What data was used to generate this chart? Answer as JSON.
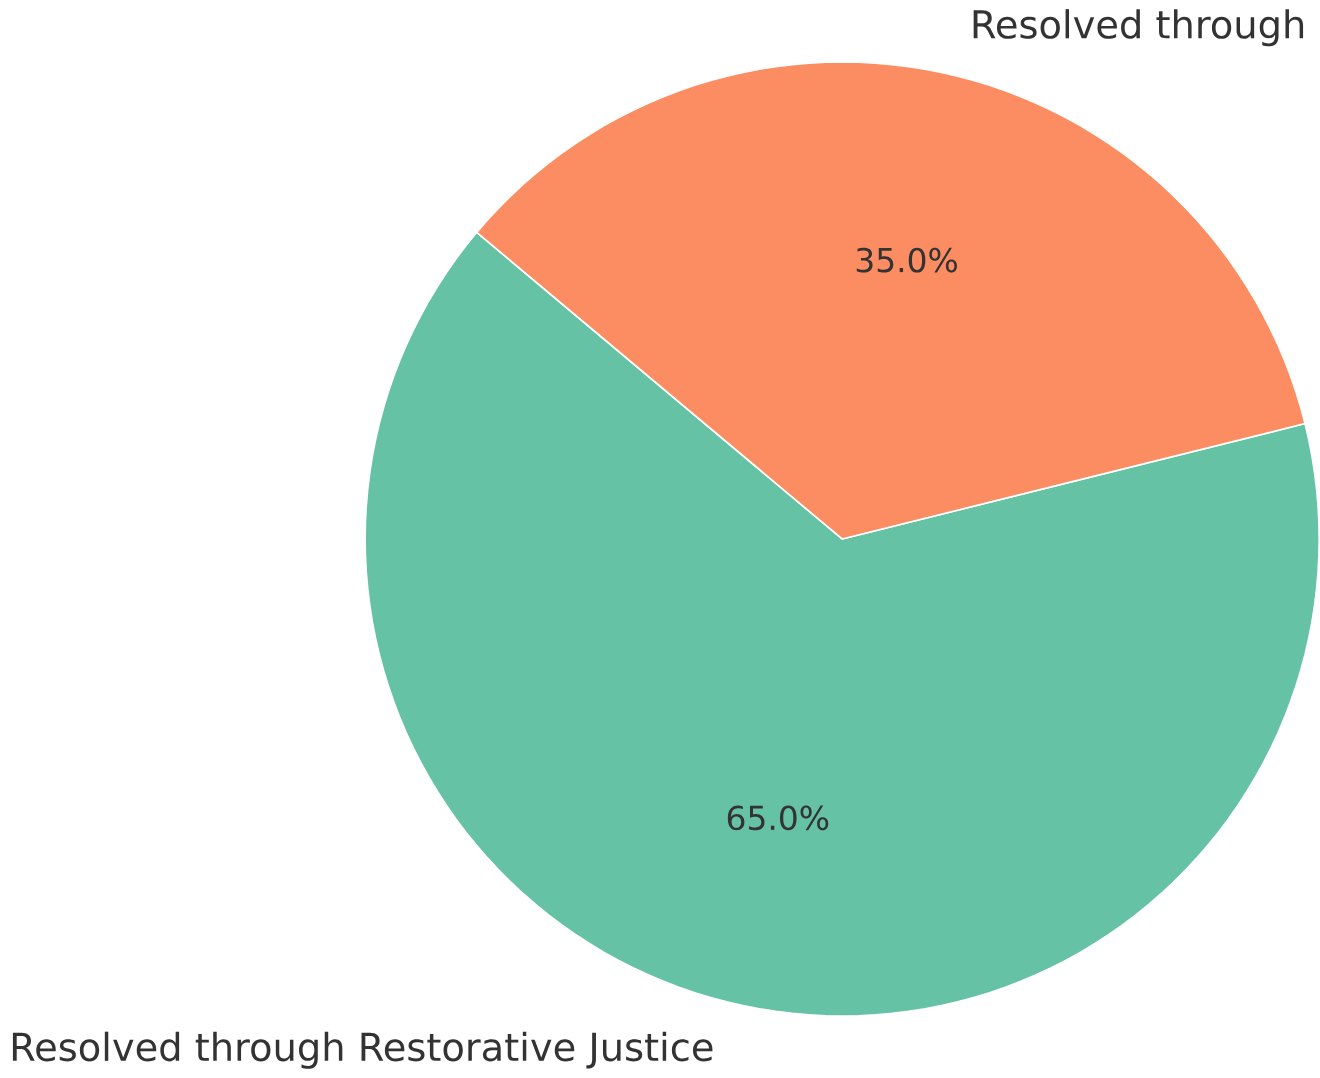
{
  "chart_data": {
    "type": "pie",
    "categories": [
      "Resolved through Restorative Justice",
      "Resolved through"
    ],
    "values": [
      65,
      35
    ],
    "value_labels": [
      "65.0%",
      "35.0%"
    ],
    "colors": [
      "#66c2a5",
      "#fc8d62"
    ]
  }
}
